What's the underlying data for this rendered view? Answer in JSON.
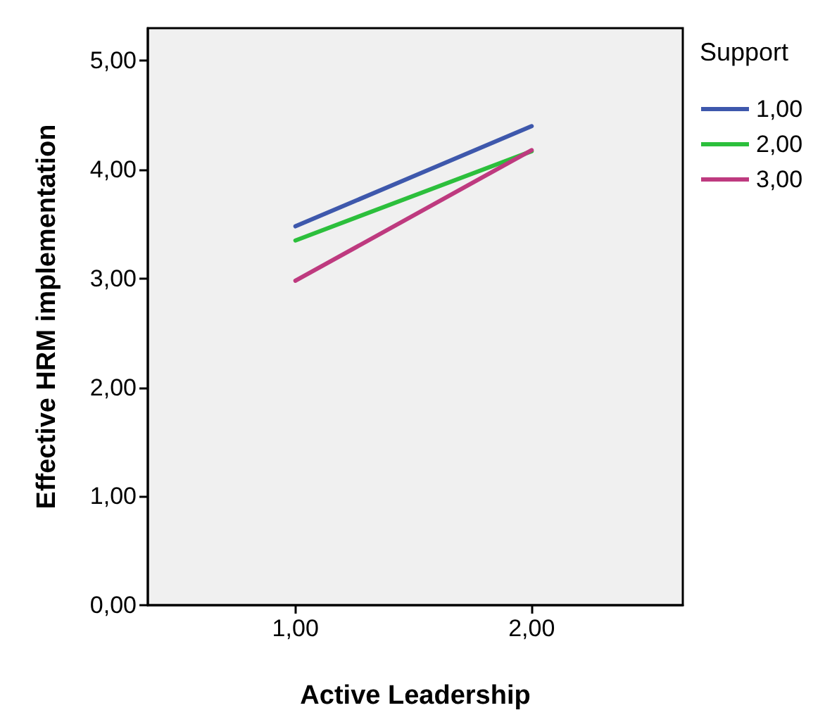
{
  "chart_data": {
    "type": "line",
    "xlabel": "Active Leadership",
    "ylabel": "Effective HRM implementation",
    "legend_title": "Support",
    "x": [
      1,
      2
    ],
    "series": [
      {
        "name": "1,00",
        "color": "#3e58ac",
        "values": [
          3.48,
          4.4
        ]
      },
      {
        "name": "2,00",
        "color": "#2cbf3c",
        "values": [
          3.35,
          4.17
        ]
      },
      {
        "name": "3,00",
        "color": "#be3a7f",
        "values": [
          2.98,
          4.18
        ]
      }
    ],
    "xlim": [
      0.375,
      2.64
    ],
    "xticks": [
      {
        "value": 1,
        "label": "1,00"
      },
      {
        "value": 2,
        "label": "2,00"
      }
    ],
    "ylim": [
      0,
      5.3
    ],
    "yticks": [
      {
        "value": 0,
        "label": "0,00"
      },
      {
        "value": 1,
        "label": "1,00"
      },
      {
        "value": 2,
        "label": "2,00"
      },
      {
        "value": 3,
        "label": "3,00"
      },
      {
        "value": 4,
        "label": "4,00"
      },
      {
        "value": 5,
        "label": "5,00"
      }
    ],
    "grid": false,
    "legend": "right",
    "marker": "none",
    "line_style": "solid"
  }
}
